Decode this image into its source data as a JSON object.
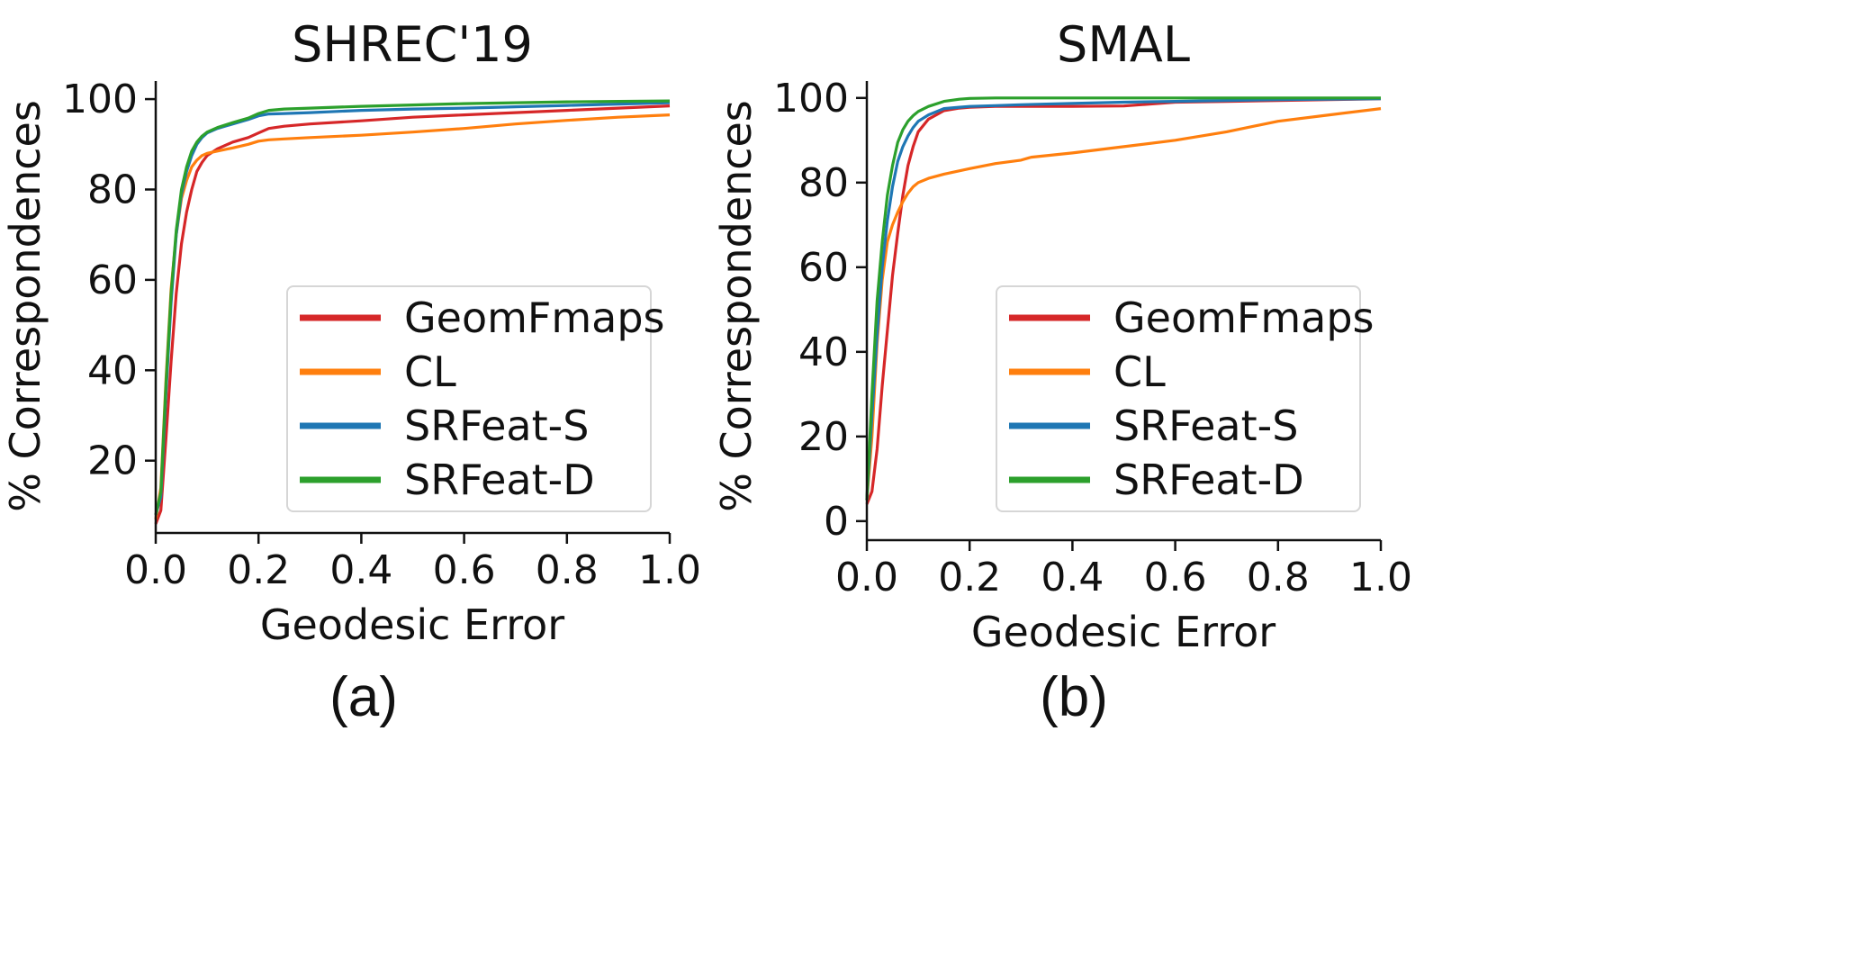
{
  "chart_data": [
    {
      "type": "line",
      "title": "SHREC'19",
      "panel_label": "(a)",
      "xlabel": "Geodesic Error",
      "ylabel": "% Correspondences",
      "xlim": [
        0,
        1
      ],
      "ylim": [
        4,
        104
      ],
      "xticks": [
        "0.0",
        "0.2",
        "0.4",
        "0.6",
        "0.8",
        "1.0"
      ],
      "yticks": [
        "20",
        "40",
        "60",
        "80",
        "100"
      ],
      "grid": false,
      "legend_position": "lower-right",
      "series": [
        {
          "name": "GeomFmaps",
          "color": "#d62728",
          "x": [
            0,
            0.01,
            0.02,
            0.03,
            0.04,
            0.05,
            0.06,
            0.07,
            0.08,
            0.09,
            0.1,
            0.12,
            0.15,
            0.18,
            0.2,
            0.22,
            0.25,
            0.3,
            0.4,
            0.5,
            0.6,
            0.7,
            0.8,
            0.9,
            1.0
          ],
          "y": [
            6,
            9,
            25,
            42,
            57,
            68,
            75,
            80,
            84,
            86,
            87.5,
            89,
            90.5,
            91.5,
            92.5,
            93.5,
            94,
            94.5,
            95.2,
            96,
            96.5,
            97,
            97.5,
            98,
            98.5
          ]
        },
        {
          "name": "CL",
          "color": "#ff7f0e",
          "x": [
            0,
            0.01,
            0.02,
            0.03,
            0.04,
            0.05,
            0.06,
            0.07,
            0.08,
            0.09,
            0.1,
            0.12,
            0.15,
            0.18,
            0.2,
            0.22,
            0.25,
            0.3,
            0.4,
            0.5,
            0.6,
            0.7,
            0.8,
            0.9,
            1.0
          ],
          "y": [
            7,
            14,
            38,
            58,
            70,
            78,
            82,
            85,
            86.5,
            87.5,
            88,
            88.5,
            89.2,
            90,
            90.7,
            91,
            91.2,
            91.5,
            92,
            92.7,
            93.5,
            94.5,
            95.3,
            96,
            96.5
          ]
        },
        {
          "name": "SRFeat-S",
          "color": "#1f77b4",
          "x": [
            0,
            0.01,
            0.02,
            0.03,
            0.04,
            0.05,
            0.06,
            0.07,
            0.08,
            0.09,
            0.1,
            0.12,
            0.15,
            0.18,
            0.2,
            0.22,
            0.25,
            0.3,
            0.4,
            0.5,
            0.6,
            0.7,
            0.8,
            0.9,
            1.0
          ],
          "y": [
            8,
            12,
            35,
            55,
            70,
            79,
            84,
            87.5,
            90,
            91.5,
            92.5,
            93.5,
            94.5,
            95.5,
            96.3,
            96.7,
            96.8,
            97,
            97.5,
            97.8,
            98,
            98.3,
            98.6,
            98.9,
            99.2
          ]
        },
        {
          "name": "SRFeat-D",
          "color": "#2ca02c",
          "x": [
            0,
            0.01,
            0.02,
            0.03,
            0.04,
            0.05,
            0.06,
            0.07,
            0.08,
            0.09,
            0.1,
            0.12,
            0.15,
            0.18,
            0.2,
            0.22,
            0.25,
            0.3,
            0.4,
            0.5,
            0.6,
            0.7,
            0.8,
            0.9,
            1.0
          ],
          "y": [
            8,
            13,
            37,
            57,
            71,
            80,
            85,
            88.5,
            90.5,
            91.8,
            92.7,
            93.7,
            94.8,
            95.8,
            96.8,
            97.5,
            97.8,
            98,
            98.4,
            98.7,
            99,
            99.2,
            99.4,
            99.5,
            99.6
          ]
        }
      ]
    },
    {
      "type": "line",
      "title": "SMAL",
      "panel_label": "(b)",
      "xlabel": "Geodesic Error",
      "ylabel": "% Correspondences",
      "xlim": [
        0,
        1
      ],
      "ylim": [
        -4.5,
        104
      ],
      "xticks": [
        "0.0",
        "0.2",
        "0.4",
        "0.6",
        "0.8",
        "1.0"
      ],
      "yticks": [
        "0",
        "20",
        "40",
        "60",
        "80",
        "100"
      ],
      "grid": false,
      "legend_position": "lower-right",
      "series": [
        {
          "name": "GeomFmaps",
          "color": "#d62728",
          "x": [
            0,
            0.01,
            0.02,
            0.03,
            0.04,
            0.05,
            0.06,
            0.07,
            0.08,
            0.09,
            0.1,
            0.12,
            0.15,
            0.18,
            0.2,
            0.25,
            0.3,
            0.4,
            0.5,
            0.6,
            0.7,
            0.8,
            0.9,
            1.0
          ],
          "y": [
            4,
            7,
            17,
            32,
            45,
            58,
            68,
            77,
            84,
            88.5,
            92,
            95,
            97,
            97.6,
            97.8,
            98,
            98,
            98,
            98.1,
            99,
            99.2,
            99.4,
            99.6,
            99.8
          ]
        },
        {
          "name": "CL",
          "color": "#ff7f0e",
          "x": [
            0,
            0.01,
            0.02,
            0.03,
            0.04,
            0.05,
            0.06,
            0.07,
            0.08,
            0.09,
            0.1,
            0.12,
            0.15,
            0.2,
            0.25,
            0.3,
            0.32,
            0.4,
            0.5,
            0.6,
            0.7,
            0.8,
            0.9,
            1.0
          ],
          "y": [
            5,
            20,
            42,
            57,
            66,
            70,
            73,
            75.5,
            77.5,
            79,
            80,
            81,
            82,
            83.3,
            84.5,
            85.3,
            86,
            87,
            88.5,
            90,
            92,
            94.5,
            96,
            97.5
          ]
        },
        {
          "name": "SRFeat-S",
          "color": "#1f77b4",
          "x": [
            0,
            0.01,
            0.02,
            0.03,
            0.04,
            0.05,
            0.06,
            0.07,
            0.08,
            0.09,
            0.1,
            0.12,
            0.15,
            0.18,
            0.2,
            0.25,
            0.3,
            0.4,
            0.5,
            0.6,
            0.7,
            0.8,
            0.9,
            1.0
          ],
          "y": [
            5,
            25,
            44,
            60,
            71,
            79,
            85,
            88.5,
            91,
            93,
            94.5,
            96,
            97.5,
            97.8,
            98,
            98.2,
            98.4,
            98.7,
            99,
            99.2,
            99.4,
            99.6,
            99.7,
            99.8
          ]
        },
        {
          "name": "SRFeat-D",
          "color": "#2ca02c",
          "x": [
            0,
            0.01,
            0.02,
            0.03,
            0.04,
            0.05,
            0.06,
            0.07,
            0.08,
            0.09,
            0.1,
            0.12,
            0.15,
            0.18,
            0.2,
            0.25,
            0.3,
            0.4,
            0.5,
            0.6,
            0.7,
            0.8,
            0.9,
            1.0
          ],
          "y": [
            5,
            30,
            52,
            66,
            77,
            84,
            89.5,
            92.5,
            94.5,
            95.8,
            96.8,
            98,
            99.2,
            99.7,
            99.9,
            100,
            100,
            100,
            100,
            100,
            100,
            100,
            100,
            100
          ]
        }
      ]
    }
  ]
}
